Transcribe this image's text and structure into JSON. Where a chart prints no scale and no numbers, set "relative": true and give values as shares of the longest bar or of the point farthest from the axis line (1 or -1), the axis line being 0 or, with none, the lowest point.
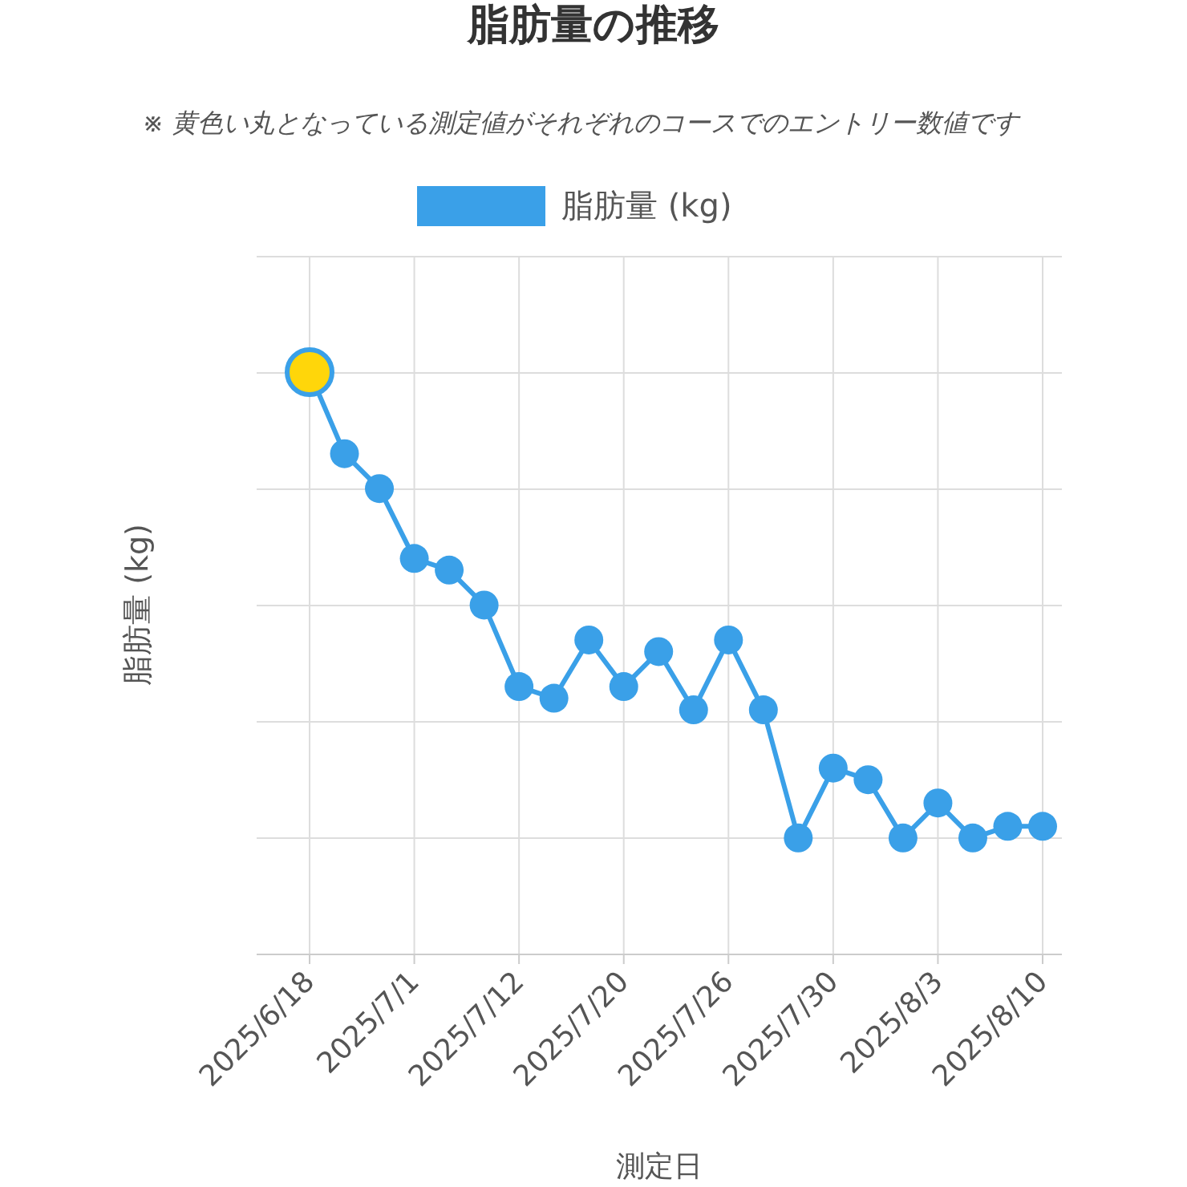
{
  "chart_data": {
    "type": "line",
    "title": "脂肪量の推移",
    "subtitle": "※ 黄色い丸となっている測定値がそれぞれのコースでのエントリー数値です",
    "xlabel": "測定日",
    "ylabel": "脂肪量 (kg)",
    "categories": [
      "2025/6/18",
      null,
      null,
      "2025/7/1",
      null,
      null,
      "2025/7/12",
      null,
      null,
      "2025/7/20",
      null,
      null,
      "2025/7/26",
      null,
      null,
      "2025/7/30",
      null,
      null,
      "2025/8/3",
      null,
      null,
      "2025/8/10"
    ],
    "series": [
      {
        "name": "脂肪量 (kg)",
        "color": "#3aa0e8",
        "colors": [
          "#ffd60a",
          "#3aa0e8",
          "#3aa0e8",
          "#3aa0e8",
          "#3aa0e8",
          "#3aa0e8",
          "#3aa0e8",
          "#3aa0e8",
          "#3aa0e8",
          "#3aa0e8",
          "#3aa0e8",
          "#3aa0e8",
          "#3aa0e8",
          "#3aa0e8",
          "#3aa0e8",
          "#3aa0e8",
          "#3aa0e8",
          "#3aa0e8",
          "#3aa0e8",
          "#3aa0e8",
          "#3aa0e8",
          "#3aa0e8"
        ],
        "values": [
          1,
          0.86,
          0.8,
          0.68,
          0.66,
          0.6,
          0.46,
          0.44,
          0.54,
          0.46,
          0.52,
          0.42,
          0.54,
          0.42,
          0.2,
          0.32,
          0.3,
          0.2,
          0.26,
          0.2,
          0.22,
          0.22
        ]
      }
    ],
    "relative": true,
    "grid": true,
    "legend": "top",
    "marker": "circle",
    "line_style": "solid"
  }
}
